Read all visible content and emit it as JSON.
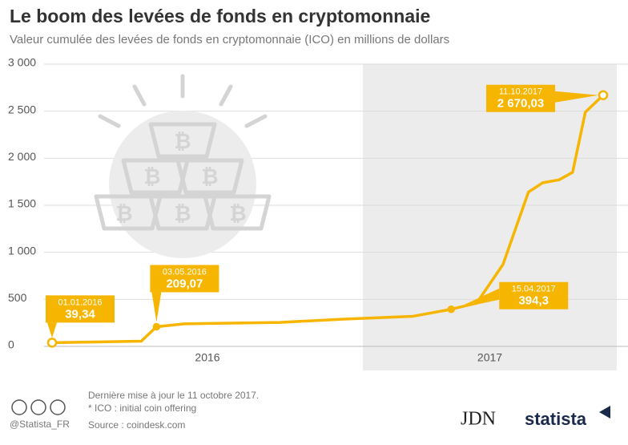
{
  "chart_data": {
    "type": "line",
    "title": "Le boom des levées de fonds en cryptomonnaie",
    "subtitle": "Valeur cumulée des levées de fonds en cryptomonnaie (ICO) en millions de dollars",
    "series": [
      {
        "name": "Valeur cumulée",
        "color": "#f6b500",
        "x": [
          "2016-01-01",
          "2016-04-15",
          "2016-05-03",
          "2016-06-05",
          "2016-09-25",
          "2016-12-10",
          "2017-03-01",
          "2017-04-15",
          "2017-05-15",
          "2017-06-15",
          "2017-07-15",
          "2017-08-01",
          "2017-08-20",
          "2017-09-05",
          "2017-09-20",
          "2017-10-11"
        ],
        "values": [
          39.34,
          55,
          209.07,
          240,
          255,
          290,
          320,
          394.3,
          460,
          870,
          1640,
          1740,
          1770,
          1850,
          2490,
          2670.03
        ],
        "value_labels": [
          "39,34",
          null,
          "209,07",
          null,
          null,
          null,
          null,
          "394,3",
          null,
          null,
          null,
          null,
          null,
          null,
          null,
          "2 670,03"
        ],
        "point_labels": [
          "01.01.2016",
          null,
          "03.05.2016",
          null,
          null,
          null,
          null,
          "15.04.2017",
          null,
          null,
          null,
          null,
          null,
          null,
          null,
          "11.10.2017"
        ]
      }
    ],
    "xlim": [
      "2016-01-01",
      "2017-10-11"
    ],
    "xticks": [
      {
        "value": "2016-01-01",
        "label": "2016"
      },
      {
        "value": "2017-01-01",
        "label": "2017"
      }
    ],
    "ylim": [
      0,
      3000
    ],
    "yticks": [
      0,
      500,
      {
        "value": 1000,
        "label": "1 000"
      },
      {
        "value": 1500,
        "label": "1 500"
      },
      {
        "value": 2000,
        "label": "2 000"
      },
      {
        "value": 2500,
        "label": "2 500"
      },
      {
        "value": 3000,
        "label": "3 000"
      }
    ],
    "grid": true,
    "footer": {
      "handle": "@Statista_FR",
      "notes": [
        "Dernière mise à jour le 11 octobre 2017.",
        "* ICO : initial coin offering",
        "Source : coindesk.com"
      ],
      "logos": [
        "JDN",
        "statista"
      ]
    }
  }
}
